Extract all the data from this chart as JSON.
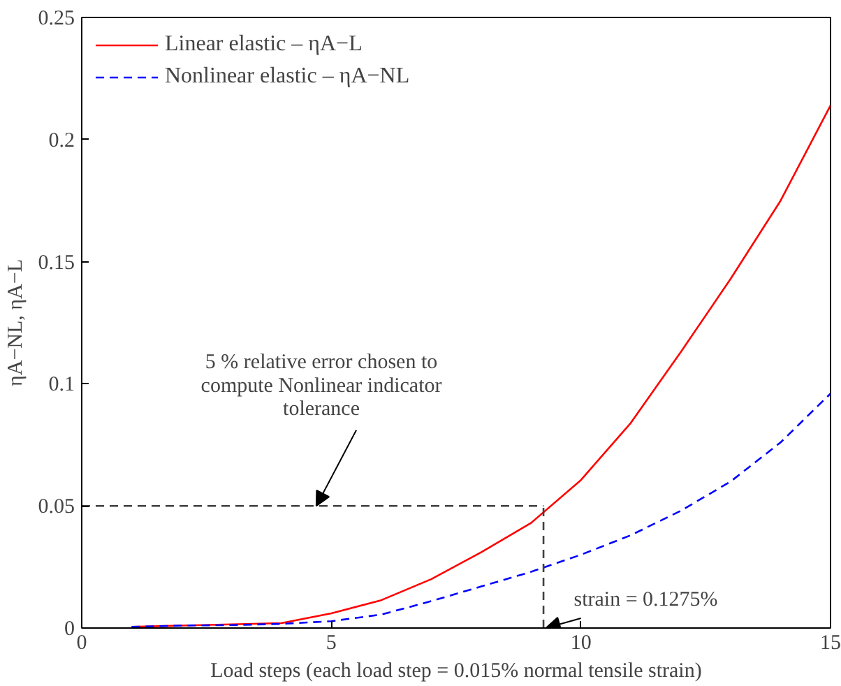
{
  "chart_data": {
    "type": "line",
    "xlabel": "Load steps (each load step = 0.015% normal tensile strain)",
    "ylabel": "ηA−NL, ηA−L",
    "x": [
      1,
      2,
      3,
      4,
      5,
      6,
      7,
      8,
      9,
      10,
      11,
      12,
      13,
      14,
      15
    ],
    "series": [
      {
        "name": "Linear elastic – ηA−L",
        "color": "#ff0000",
        "line_style": "solid",
        "values": [
          0.0005,
          0.001,
          0.0015,
          0.002,
          0.006,
          0.0114,
          0.02,
          0.031,
          0.043,
          0.0606,
          0.084,
          0.113,
          0.143,
          0.175,
          0.214
        ]
      },
      {
        "name": "Nonlinear elastic – ηA−NL",
        "color": "#0000ff",
        "line_style": "dashed",
        "values": [
          0.0005,
          0.001,
          0.0012,
          0.0017,
          0.0028,
          0.0055,
          0.011,
          0.017,
          0.023,
          0.03,
          0.038,
          0.048,
          0.06,
          0.076,
          0.096
        ]
      }
    ],
    "ref_lines": [
      {
        "axis": "y",
        "value": 0.05,
        "color": "#404040",
        "line_style": "dashed"
      },
      {
        "axis": "x",
        "value": 9.25,
        "color": "#404040",
        "line_style": "dashed"
      }
    ],
    "annotations": [
      {
        "text": "5 % relative error chosen to\ncompute Nonlinear indicator\ntolerance",
        "x": 4.7,
        "y": 0.05
      },
      {
        "text": "strain = 0.1275%",
        "x": 9.3,
        "y": 0
      }
    ],
    "xlim": [
      0,
      15
    ],
    "ylim": [
      0,
      0.25
    ],
    "xticks": [
      0,
      5,
      10,
      15
    ],
    "yticks": [
      0,
      0.05,
      {
        "value": 0.1,
        "label": "0.1"
      },
      0.15,
      {
        "value": 0.2,
        "label": "0.2"
      },
      0.25
    ],
    "legend": "top left",
    "grid": false
  }
}
